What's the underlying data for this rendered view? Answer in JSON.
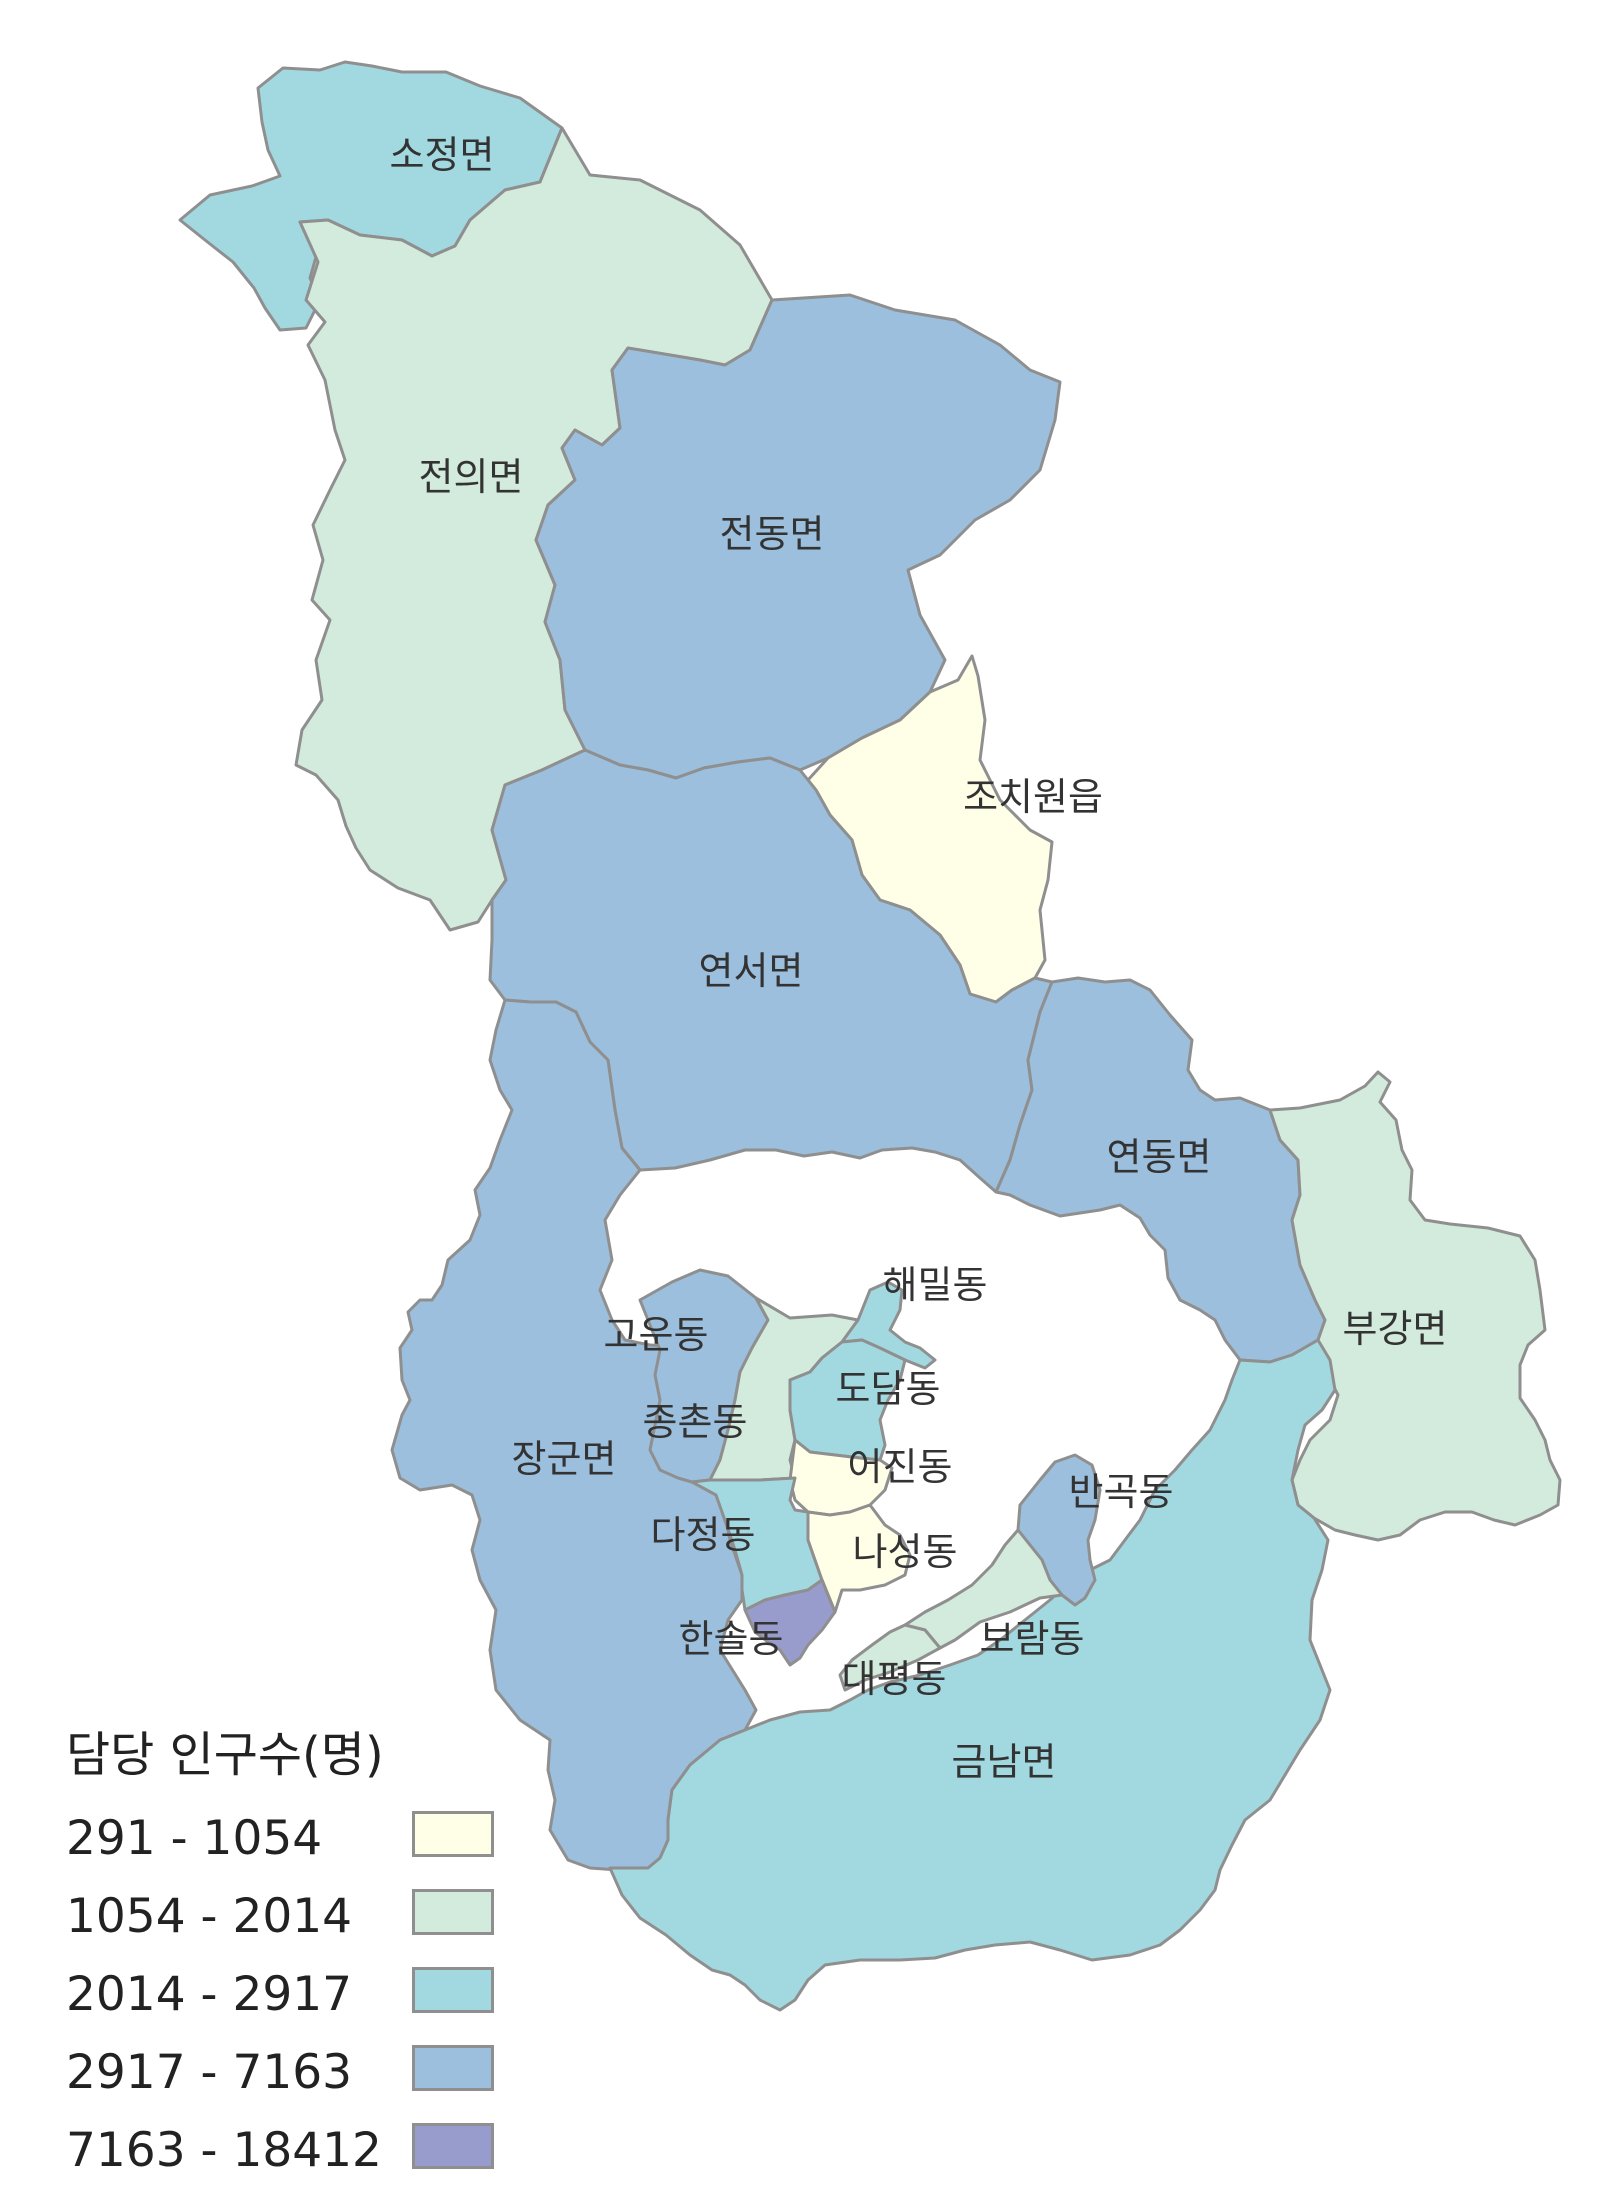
{
  "legend": {
    "title": "담당 인구수(명)",
    "classes": [
      {
        "label": "291 - 1054",
        "color": "#ffffe8"
      },
      {
        "label": "1054 - 2014",
        "color": "#d3ebdc"
      },
      {
        "label": "2014 - 2917",
        "color": "#a2d9e0"
      },
      {
        "label": "2917 - 7163",
        "color": "#9bbfdc"
      },
      {
        "label": "7163 - 18412",
        "color": "#989ccc"
      }
    ]
  },
  "regions": [
    {
      "name": "소정면",
      "class": 2
    },
    {
      "name": "전의면",
      "class": 1
    },
    {
      "name": "전동면",
      "class": 3
    },
    {
      "name": "조치원읍",
      "class": 0
    },
    {
      "name": "연서면",
      "class": 3
    },
    {
      "name": "연동면",
      "class": 3
    },
    {
      "name": "부강면",
      "class": 1
    },
    {
      "name": "장군면",
      "class": 3
    },
    {
      "name": "금남면",
      "class": 2
    },
    {
      "name": "고운동",
      "class": 3
    },
    {
      "name": "해밀동",
      "class": 2
    },
    {
      "name": "도담동",
      "class": 2
    },
    {
      "name": "종촌동",
      "class": 1
    },
    {
      "name": "어진동",
      "class": 0
    },
    {
      "name": "반곡동",
      "class": 3
    },
    {
      "name": "다정동",
      "class": 2
    },
    {
      "name": "나성동",
      "class": 0
    },
    {
      "name": "한솔동",
      "class": 4
    },
    {
      "name": "보람동",
      "class": 1
    },
    {
      "name": "대평동",
      "class": 1
    }
  ]
}
